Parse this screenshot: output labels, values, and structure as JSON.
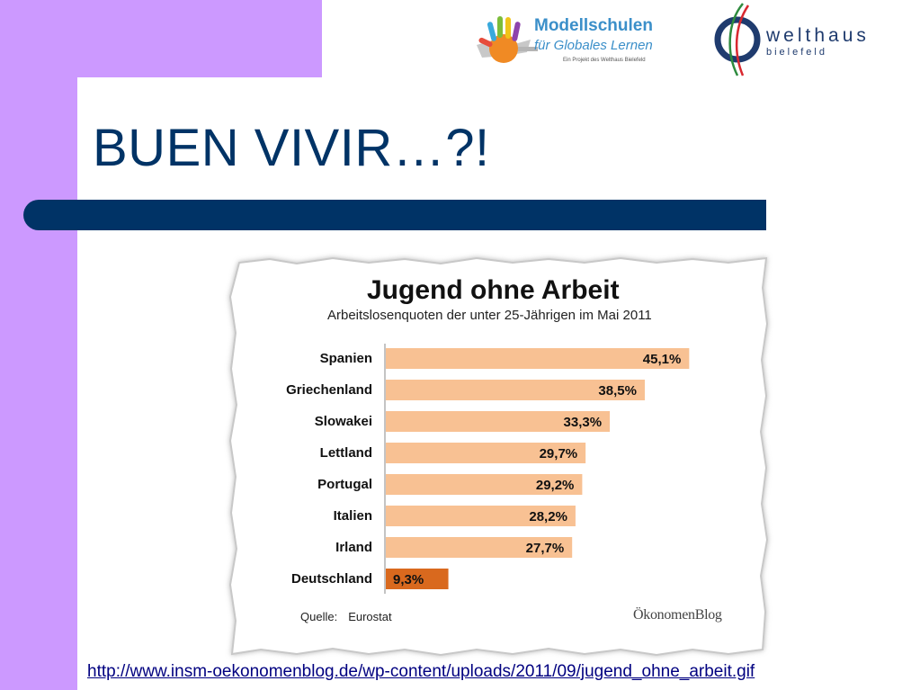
{
  "slide": {
    "title": "BUEN VIVIR…?!",
    "link": "http://www.insm-oekonomenblog.de/wp-content/uploads/2011/09/jugend_ohne_arbeit.gif"
  },
  "logos": {
    "modellschulen": {
      "line1": "Modellschulen",
      "line2": "für Globales Lernen",
      "line3": "Ein Projekt des Welthaus Bielefeld"
    },
    "welthaus": {
      "line1": "welthaus",
      "line2": "bielefeld"
    }
  },
  "colors": {
    "purple": "#cc99ff",
    "navy": "#003366",
    "bar": "#f8c193",
    "bar_highlight": "#d9691e"
  },
  "figure": {
    "source_label": "Quelle:",
    "source_value": "Eurostat",
    "blog": "ÖkonomenBlog"
  },
  "chart_data": {
    "type": "bar",
    "orientation": "horizontal",
    "title": "Jugend ohne Arbeit",
    "subtitle": "Arbeitslosenquoten der unter 25-Jährigen im Mai 2011",
    "categories": [
      "Spanien",
      "Griechenland",
      "Slowakei",
      "Lettland",
      "Portugal",
      "Italien",
      "Irland",
      "Deutschland"
    ],
    "values": [
      45.1,
      38.5,
      33.3,
      29.7,
      29.2,
      28.2,
      27.7,
      9.3
    ],
    "value_labels": [
      "45,1%",
      "38,5%",
      "33,3%",
      "29,7%",
      "29,2%",
      "28,2%",
      "27,7%",
      "9,3%"
    ],
    "highlight": "Deutschland",
    "unit": "%",
    "xlim": [
      0,
      50
    ],
    "grid": false,
    "legend": "none"
  }
}
